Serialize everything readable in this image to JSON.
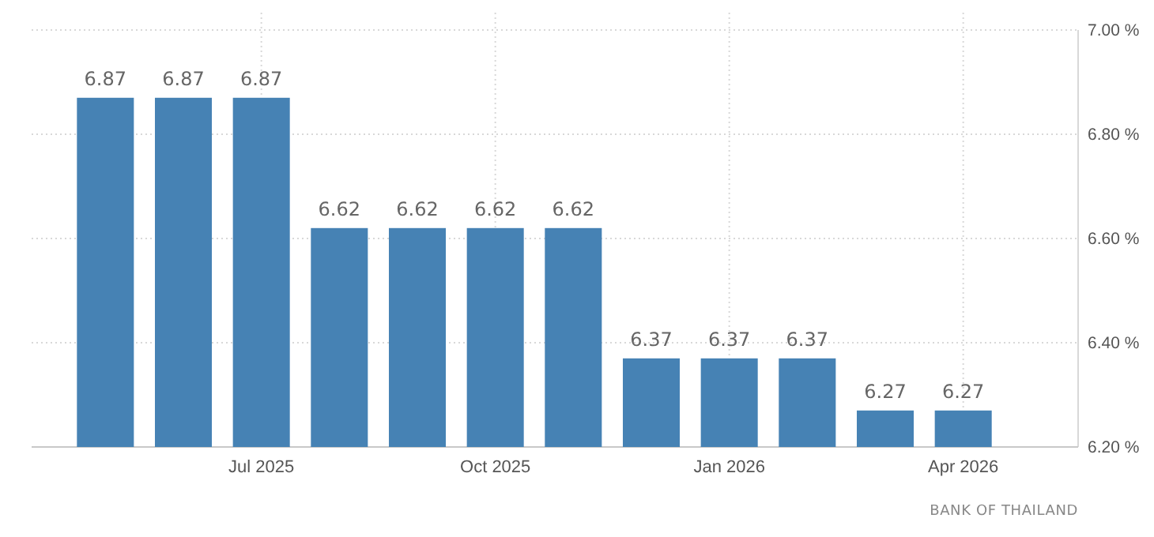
{
  "chart_data": {
    "type": "bar",
    "categories": [
      null,
      null,
      "Jul 2025",
      null,
      null,
      "Oct 2025",
      null,
      null,
      "Jan 2026",
      null,
      null,
      "Apr 2026"
    ],
    "values": [
      6.87,
      6.87,
      6.87,
      6.62,
      6.62,
      6.62,
      6.62,
      6.37,
      6.37,
      6.37,
      6.27,
      6.27
    ],
    "color": "#4682b4",
    "ylim": [
      6.2,
      7.0
    ],
    "yticks": [
      {
        "value": 6.2,
        "label": "6.20 %"
      },
      {
        "value": 6.4,
        "label": "6.40 %"
      },
      {
        "value": 6.6,
        "label": "6.60 %"
      },
      {
        "value": 6.8,
        "label": "6.80 %"
      },
      {
        "value": 7.0,
        "label": "7.00 %"
      }
    ],
    "grid": true,
    "data_labels": true,
    "annotations": [
      "BANK OF THAILAND"
    ]
  }
}
